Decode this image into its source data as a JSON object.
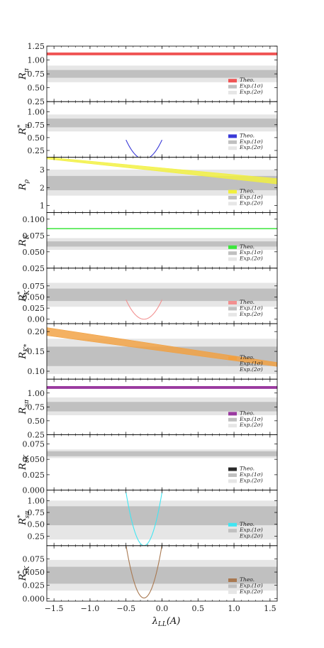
{
  "chart_data": {
    "type": "multi-panel",
    "xlabel": "λ_LL(A)",
    "xlim": [
      -1.6,
      1.6
    ],
    "xticks": [
      -1.5,
      -1.0,
      -0.5,
      0.0,
      0.5,
      1.0,
      1.5
    ],
    "xtick_labels": [
      "−1.5",
      "−1.0",
      "−0.5",
      "0.0",
      "0.5",
      "1.0",
      "1.5"
    ],
    "legend_labels": {
      "theo": "Theo.",
      "exp1": "Exp.(1σ)",
      "exp2": "Exp.(2σ)"
    },
    "exp_colors": {
      "one_sigma": "#c0c0c0",
      "two_sigma": "#e6e6e6"
    },
    "panels": [
      {
        "ylabel": "R_π",
        "ylabel_base": "R",
        "ylabel_sub": "π",
        "ylabel_star": false,
        "ylim": [
          0.25,
          1.25
        ],
        "yticks": [
          0.25,
          0.5,
          0.75,
          1.0,
          1.25
        ],
        "ytick_labels": [
          "0.25",
          "0.50",
          "0.75",
          "1.00",
          "1.25"
        ],
        "color": "#f05555",
        "exp2": [
          0.6,
          0.9
        ],
        "exp1": [
          0.68,
          0.82
        ],
        "theory": {
          "kind": "flat",
          "value": 1.11,
          "width": 0.025
        }
      },
      {
        "ylabel": "R*_π",
        "ylabel_base": "R",
        "ylabel_sub": "π",
        "ylabel_star": true,
        "ylim": [
          0.12,
          1.2
        ],
        "yticks": [
          0.25,
          0.5,
          0.75,
          1.0
        ],
        "ytick_labels": [
          "0.25",
          "0.50",
          "0.75",
          "1.00"
        ],
        "color": "#3a3ad8",
        "exp2": [
          0.62,
          0.95
        ],
        "exp1": [
          0.7,
          0.87
        ],
        "theory": {
          "kind": "parabola",
          "vertex_x": -0.25,
          "vertex_y": 0.08,
          "curvature": 6.0,
          "xmin": -0.5,
          "xmax": 0.0,
          "width": 0.2
        }
      },
      {
        "ylabel": "R_ρ",
        "ylabel_base": "R",
        "ylabel_sub": "ρ",
        "ylabel_star": false,
        "ylim": [
          0.6,
          3.7
        ],
        "yticks": [
          1,
          2,
          3
        ],
        "ytick_labels": [
          "1",
          "2",
          "3"
        ],
        "color": "#f2f03c",
        "exp2": [
          1.55,
          3.0
        ],
        "exp1": [
          1.85,
          2.65
        ],
        "theory": {
          "kind": "linear_band",
          "x_start": -1.6,
          "x_end": 1.6,
          "low_start": 3.6,
          "low_end": 2.2,
          "high_start": 3.7,
          "high_end": 2.5
        }
      },
      {
        "ylabel": "R_K",
        "ylabel_base": "R",
        "ylabel_sub": "K",
        "ylabel_star": false,
        "ylim": [
          0.025,
          0.11
        ],
        "yticks": [
          0.025,
          0.05,
          0.075,
          0.1
        ],
        "ytick_labels": [
          "0.025",
          "0.050",
          "0.075",
          "0.100"
        ],
        "color": "#3ce63c",
        "exp2": [
          0.053,
          0.071
        ],
        "exp1": [
          0.058,
          0.066
        ],
        "theory": {
          "kind": "flat",
          "value": 0.0855,
          "width": 0.0008
        }
      },
      {
        "ylabel": "R*_K",
        "ylabel_base": "R",
        "ylabel_sub": "K",
        "ylabel_star": true,
        "ylim": [
          -0.01,
          0.115
        ],
        "yticks": [
          0.0,
          0.025,
          0.05,
          0.075
        ],
        "ytick_labels": [
          "0.00",
          "0.025",
          "0.050",
          "0.075"
        ],
        "color": "#f29090",
        "exp2": [
          0.028,
          0.082
        ],
        "exp1": [
          0.041,
          0.069
        ],
        "theory": {
          "kind": "parabola",
          "vertex_x": -0.25,
          "vertex_y": 0.0,
          "curvature": 0.7,
          "xmin": -0.5,
          "xmax": 0.0,
          "width": 0.0008
        }
      },
      {
        "ylabel": "R_K*",
        "ylabel_base": "R",
        "ylabel_sub": "K*",
        "ylabel_star": false,
        "ylim": [
          0.08,
          0.22
        ],
        "yticks": [
          0.1,
          0.15,
          0.2
        ],
        "ytick_labels": [
          "0.10",
          "0.15",
          "0.20"
        ],
        "color": "#f2a040",
        "exp2": [
          0.093,
          0.182
        ],
        "exp1": [
          0.113,
          0.162
        ],
        "theory": {
          "kind": "linear_band",
          "x_start": -1.6,
          "x_end": 1.6,
          "low_start": 0.19,
          "low_end": 0.112,
          "high_start": 0.21,
          "high_end": 0.122
        }
      },
      {
        "ylabel": "R_sπ",
        "ylabel_base": "R",
        "ylabel_sub": "sπ",
        "ylabel_star": false,
        "ylim": [
          0.25,
          1.25
        ],
        "yticks": [
          0.25,
          0.5,
          0.75,
          1.0
        ],
        "ytick_labels": [
          "0.25",
          "0.50",
          "0.75",
          "1.00"
        ],
        "color": "#9a3aa0",
        "exp2": [
          0.6,
          0.92
        ],
        "exp1": [
          0.67,
          0.84
        ],
        "theory": {
          "kind": "flat",
          "value": 1.1,
          "width": 0.025
        }
      },
      {
        "ylabel": "R_sK",
        "ylabel_base": "R",
        "ylabel_sub": "sK",
        "ylabel_star": false,
        "ylim": [
          0.0,
          0.09
        ],
        "yticks": [
          0.0,
          0.025,
          0.05,
          0.075
        ],
        "ytick_labels": [
          "0.000",
          "0.025",
          "0.050",
          "0.075"
        ],
        "color": "#2a2a2a",
        "exp2": [
          0.052,
          0.066
        ],
        "exp1": [
          0.055,
          0.063
        ],
        "theory": null
      },
      {
        "ylabel": "R*_sπ",
        "ylabel_base": "R",
        "ylabel_sub": "sπ",
        "ylabel_star": true,
        "ylim": [
          0.05,
          1.22
        ],
        "yticks": [
          0.25,
          0.5,
          0.75,
          1.0
        ],
        "ytick_labels": [
          "0.25",
          "0.50",
          "0.75",
          "1.00"
        ],
        "color": "#40e6f2",
        "exp2": [
          0.18,
          1.0
        ],
        "exp1": [
          0.48,
          0.88
        ],
        "theory": {
          "kind": "parabola",
          "vertex_x": -0.25,
          "vertex_y": 0.05,
          "curvature": 18.0,
          "xmin": -0.5,
          "xmax": 0.0,
          "width": 0.3
        }
      },
      {
        "ylabel": "R*_sK",
        "ylabel_base": "R",
        "ylabel_sub": "sK",
        "ylabel_star": true,
        "ylim": [
          -0.005,
          0.1
        ],
        "yticks": [
          0.0,
          0.025,
          0.05,
          0.075
        ],
        "ytick_labels": [
          "0.000",
          "0.025",
          "0.050",
          "0.075"
        ],
        "color": "#a87850",
        "exp2": [
          0.015,
          0.073
        ],
        "exp1": [
          0.028,
          0.06
        ],
        "theory": {
          "kind": "parabola",
          "vertex_x": -0.25,
          "vertex_y": 0.001,
          "curvature": 1.6,
          "xmin": -0.5,
          "xmax": 0.0,
          "width": 0.0008
        }
      }
    ]
  }
}
